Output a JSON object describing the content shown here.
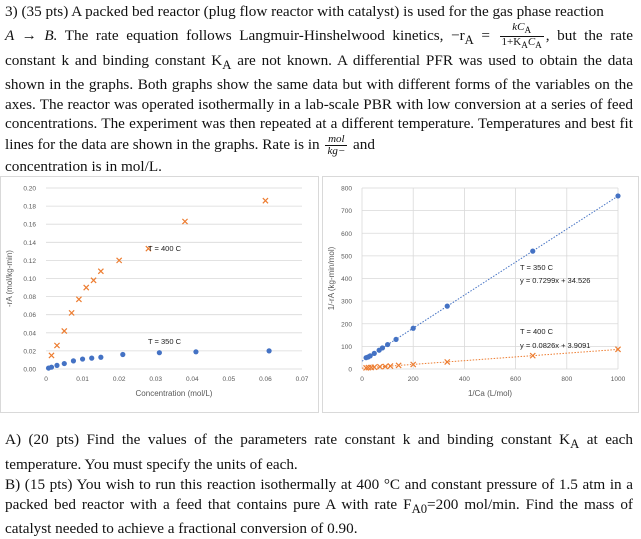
{
  "problem": {
    "intro_a": "3) (35 pts) A packed bed reactor (plug flow reactor with catalyst) is used for the gas phase reaction",
    "reaction_a": "A → B.",
    "rate_text": "The rate equation follows Langmuir-Hinshelwood kinetics, −r",
    "rate_sub": "A",
    "rate_eq": "=",
    "frac_num": "kC",
    "frac_num_sub": "A",
    "frac_den": "1+K",
    "frac_den_sub": "A",
    "frac_den2": "C",
    "frac_den2_sub": "A",
    "after_frac": ", but the rate",
    "line3": "constant k and binding constant K",
    "line3_sub": "A",
    "line3b": "are not known. A differential PFR was used to obtain the data shown in the graphs. Both graphs show the same data but with different forms of the variables on the axes. The reactor was operated isothermally in a lab-scale PBR with low conversion at a series of feed concentrations. The experiment was then repeated at a different temperature. Temperatures and best fit lines for the data are shown in the graphs. Rate is in",
    "unit_num": "mol",
    "unit_den": "kg−",
    "unit_after": "and",
    "last_line": "concentration is in mol/L."
  },
  "questions": {
    "a": "A) (20 pts) Find the values of the parameters rate constant k and binding constant K",
    "a_sub": "A",
    "a_rest": "at each temperature. You must specify the units of each.",
    "b": "B) (15 pts) You wish to run this reaction isothermally at 400 °C and constant pressure of 1.5 atm in a packed bed reactor with a feed that contains pure A with rate F",
    "b_sub": "A0",
    "b_rest": "=200 mol/min. Find the mass of catalyst needed to achieve a fractional conversion of 0.90."
  },
  "colors": {
    "blue": "#4472c4",
    "orange": "#ed7d31",
    "grid": "#d9d9d9",
    "axis_text": "#595959"
  },
  "chart_data": [
    {
      "type": "scatter",
      "xlabel": "Concentration (mol/L)",
      "ylabel": "-rA (mol/kg-min)",
      "xlim": [
        0,
        0.07
      ],
      "ylim": [
        0,
        0.2
      ],
      "x_ticks": [
        "0",
        "0.01",
        "0.02",
        "0.03",
        "0.04",
        "0.05",
        "0.06",
        "0.07"
      ],
      "y_ticks": [
        "0.00",
        "0.02",
        "0.04",
        "0.06",
        "0.08",
        "0.10",
        "0.12",
        "0.14",
        "0.16",
        "0.18",
        "0.20"
      ],
      "annotations": [
        "T = 400 C",
        "T = 350 C"
      ],
      "series": [
        {
          "name": "T = 400 C",
          "marker": "x",
          "color": "orange",
          "x": [
            0.0015,
            0.003,
            0.005,
            0.007,
            0.009,
            0.011,
            0.013,
            0.015,
            0.02,
            0.028,
            0.038,
            0.06
          ],
          "y": [
            0.015,
            0.026,
            0.042,
            0.062,
            0.077,
            0.09,
            0.098,
            0.108,
            0.12,
            0.133,
            0.163,
            0.186
          ]
        },
        {
          "name": "T = 350 C",
          "marker": "circle",
          "color": "blue",
          "x": [
            0.0007,
            0.0015,
            0.003,
            0.005,
            0.0075,
            0.01,
            0.0125,
            0.015,
            0.021,
            0.031,
            0.041,
            0.061
          ],
          "y": [
            0.001,
            0.002,
            0.004,
            0.006,
            0.009,
            0.011,
            0.012,
            0.013,
            0.016,
            0.018,
            0.019,
            0.02
          ]
        }
      ]
    },
    {
      "type": "scatter",
      "xlabel": "1/Ca (L/mol)",
      "ylabel": "1/-rA (kg-min/mol)",
      "xlim": [
        0,
        1000
      ],
      "ylim": [
        0,
        800
      ],
      "x_ticks": [
        "0",
        "200",
        "400",
        "600",
        "800",
        "1000"
      ],
      "y_ticks": [
        "0",
        "100",
        "200",
        "300",
        "400",
        "500",
        "600",
        "700",
        "800"
      ],
      "annotations": [
        "T = 350 C",
        "y = 0.7299x + 34.526",
        "T = 400 C",
        "y = 0.0826x + 3.9091"
      ],
      "series": [
        {
          "name": "T = 350 C",
          "marker": "circle",
          "color": "blue",
          "x": [
            16,
            24,
            32,
            48,
            67,
            80,
            100,
            133,
            200,
            333,
            667,
            1000
          ],
          "y": [
            50,
            53,
            58,
            69,
            83,
            93,
            108,
            131,
            180,
            278,
            521,
            765
          ]
        },
        {
          "name": "T = 400 C",
          "marker": "x",
          "color": "orange",
          "x": [
            16,
            25,
            36,
            48,
            70,
            91,
            111,
            143,
            200,
            333,
            667,
            1000
          ],
          "y": [
            5,
            6,
            7,
            8,
            10,
            11,
            13,
            16,
            20,
            31,
            59,
            87
          ]
        }
      ],
      "fit_lines": [
        {
          "name": "T = 350 C",
          "slope": 0.7299,
          "intercept": 34.526,
          "color": "blue"
        },
        {
          "name": "T = 400 C",
          "slope": 0.0826,
          "intercept": 3.9091,
          "color": "orange"
        }
      ]
    }
  ]
}
